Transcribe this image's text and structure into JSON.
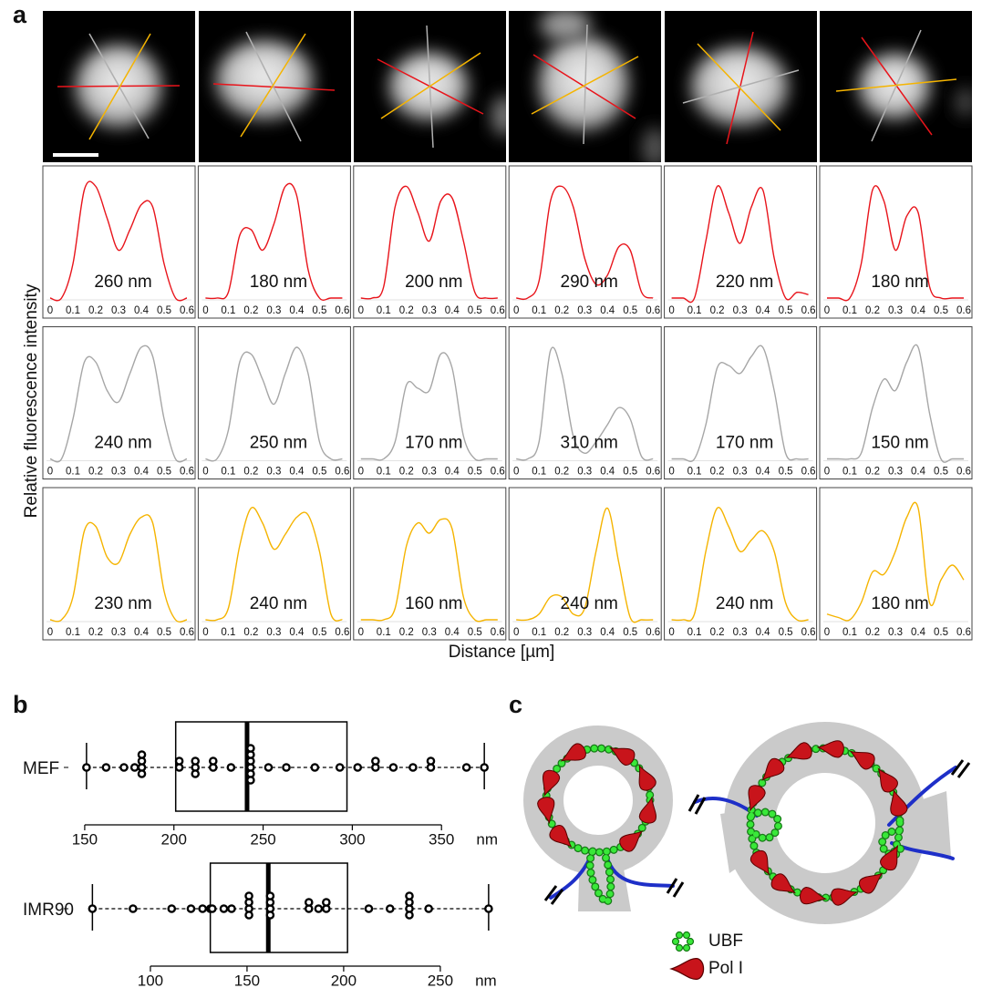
{
  "panel_a": {
    "label": "a",
    "y_label": "Relative fluorescence intensity",
    "x_label": "Distance [µm]"
  },
  "panel_b": {
    "label": "b"
  },
  "panel_c": {
    "label": "c",
    "legend": [
      "UBF",
      "Pol I"
    ]
  },
  "chart_data": [
    {
      "type": "line",
      "annotation": "260 nm",
      "x": [
        0,
        0.05,
        0.1,
        0.15,
        0.2,
        0.25,
        0.3,
        0.35,
        0.4,
        0.45,
        0.5,
        0.55,
        0.6
      ],
      "xlim": [
        0,
        0.6
      ],
      "xticks": [
        0,
        0.1,
        0.2,
        0.3,
        0.4,
        0.5,
        0.6
      ],
      "ylim": [
        0,
        1
      ],
      "series": [
        {
          "color": "#e8141b",
          "values": [
            0,
            0,
            0.3,
            0.95,
            0.98,
            0.7,
            0.42,
            0.6,
            0.82,
            0.8,
            0.3,
            0,
            0
          ]
        }
      ]
    },
    {
      "type": "line",
      "annotation": "180 nm",
      "x": [
        0,
        0.05,
        0.1,
        0.15,
        0.2,
        0.25,
        0.3,
        0.35,
        0.4,
        0.45,
        0.5,
        0.55,
        0.6
      ],
      "xlim": [
        0,
        0.6
      ],
      "xticks": [
        0,
        0.1,
        0.2,
        0.3,
        0.4,
        0.5,
        0.6
      ],
      "ylim": [
        0,
        1
      ],
      "series": [
        {
          "color": "#e8141b",
          "values": [
            0,
            0,
            0.05,
            0.55,
            0.6,
            0.42,
            0.65,
            0.98,
            0.9,
            0.25,
            0,
            0,
            0
          ]
        }
      ]
    },
    {
      "type": "line",
      "annotation": "200 nm",
      "x": [
        0,
        0.05,
        0.1,
        0.15,
        0.2,
        0.25,
        0.3,
        0.35,
        0.4,
        0.45,
        0.5,
        0.55,
        0.6
      ],
      "xlim": [
        0,
        0.6
      ],
      "xticks": [
        0,
        0.1,
        0.2,
        0.3,
        0.4,
        0.5,
        0.6
      ],
      "ylim": [
        0,
        1
      ],
      "series": [
        {
          "color": "#e8141b",
          "values": [
            0,
            0,
            0.1,
            0.8,
            0.98,
            0.75,
            0.5,
            0.85,
            0.88,
            0.5,
            0.05,
            0,
            0
          ]
        }
      ]
    },
    {
      "type": "line",
      "annotation": "290 nm",
      "x": [
        0,
        0.05,
        0.1,
        0.15,
        0.2,
        0.25,
        0.3,
        0.35,
        0.4,
        0.45,
        0.5,
        0.55,
        0.6
      ],
      "xlim": [
        0,
        0.6
      ],
      "xticks": [
        0,
        0.1,
        0.2,
        0.3,
        0.4,
        0.5,
        0.6
      ],
      "ylim": [
        0,
        1
      ],
      "series": [
        {
          "color": "#e8141b",
          "values": [
            0,
            0,
            0.15,
            0.85,
            0.98,
            0.8,
            0.35,
            0.12,
            0.2,
            0.45,
            0.42,
            0.05,
            0
          ]
        }
      ]
    },
    {
      "type": "line",
      "annotation": "220 nm",
      "x": [
        0,
        0.05,
        0.1,
        0.15,
        0.2,
        0.25,
        0.3,
        0.35,
        0.4,
        0.45,
        0.5,
        0.55,
        0.6
      ],
      "xlim": [
        0,
        0.6
      ],
      "xticks": [
        0,
        0.1,
        0.2,
        0.3,
        0.4,
        0.5,
        0.6
      ],
      "ylim": [
        0,
        1
      ],
      "series": [
        {
          "color": "#e8141b",
          "values": [
            0,
            0,
            0,
            0.5,
            0.98,
            0.75,
            0.48,
            0.8,
            0.95,
            0.35,
            0,
            0.05,
            0.03
          ]
        }
      ]
    },
    {
      "type": "line",
      "annotation": "180 nm",
      "x": [
        0,
        0.05,
        0.1,
        0.15,
        0.2,
        0.25,
        0.3,
        0.35,
        0.4,
        0.45,
        0.5,
        0.55,
        0.6
      ],
      "xlim": [
        0,
        0.6
      ],
      "xticks": [
        0,
        0.1,
        0.2,
        0.3,
        0.4,
        0.5,
        0.6
      ],
      "ylim": [
        0,
        1
      ],
      "series": [
        {
          "color": "#e8141b",
          "values": [
            0,
            0,
            0,
            0.3,
            0.95,
            0.85,
            0.42,
            0.72,
            0.75,
            0.1,
            0,
            0,
            0
          ]
        }
      ]
    },
    {
      "type": "line",
      "annotation": "240 nm",
      "x": [
        0,
        0.05,
        0.1,
        0.15,
        0.2,
        0.25,
        0.3,
        0.35,
        0.4,
        0.45,
        0.5,
        0.55,
        0.6
      ],
      "xlim": [
        0,
        0.6
      ],
      "xticks": [
        0,
        0.1,
        0.2,
        0.3,
        0.4,
        0.5,
        0.6
      ],
      "ylim": [
        0,
        1
      ],
      "series": [
        {
          "color": "#a6a6a6",
          "values": [
            0,
            0,
            0.35,
            0.85,
            0.85,
            0.6,
            0.5,
            0.75,
            0.98,
            0.9,
            0.35,
            0,
            0
          ]
        }
      ]
    },
    {
      "type": "line",
      "annotation": "250 nm",
      "x": [
        0,
        0.05,
        0.1,
        0.15,
        0.2,
        0.25,
        0.3,
        0.35,
        0.4,
        0.45,
        0.5,
        0.55,
        0.6
      ],
      "xlim": [
        0,
        0.6
      ],
      "xticks": [
        0,
        0.1,
        0.2,
        0.3,
        0.4,
        0.5,
        0.6
      ],
      "ylim": [
        0,
        1
      ],
      "series": [
        {
          "color": "#a6a6a6",
          "values": [
            0,
            0,
            0.25,
            0.85,
            0.92,
            0.7,
            0.48,
            0.75,
            0.98,
            0.75,
            0.15,
            0,
            0
          ]
        }
      ]
    },
    {
      "type": "line",
      "annotation": "170 nm",
      "x": [
        0,
        0.05,
        0.1,
        0.15,
        0.2,
        0.25,
        0.3,
        0.35,
        0.4,
        0.45,
        0.5,
        0.55,
        0.6
      ],
      "xlim": [
        0,
        0.6
      ],
      "xticks": [
        0,
        0.1,
        0.2,
        0.3,
        0.4,
        0.5,
        0.6
      ],
      "ylim": [
        0,
        1
      ],
      "series": [
        {
          "color": "#a6a6a6",
          "values": [
            0,
            0,
            0,
            0.15,
            0.65,
            0.62,
            0.6,
            0.92,
            0.8,
            0.2,
            0,
            0,
            0
          ]
        }
      ]
    },
    {
      "type": "line",
      "annotation": "310 nm",
      "x": [
        0,
        0.05,
        0.1,
        0.15,
        0.2,
        0.25,
        0.3,
        0.35,
        0.4,
        0.45,
        0.5,
        0.55,
        0.6
      ],
      "xlim": [
        0,
        0.6
      ],
      "xticks": [
        0,
        0.1,
        0.2,
        0.3,
        0.4,
        0.5,
        0.6
      ],
      "ylim": [
        0,
        1
      ],
      "series": [
        {
          "color": "#a6a6a6",
          "values": [
            0,
            0,
            0.15,
            0.95,
            0.75,
            0.2,
            0.05,
            0.15,
            0.3,
            0.45,
            0.35,
            0.02,
            0
          ]
        }
      ]
    },
    {
      "type": "line",
      "annotation": "170 nm",
      "x": [
        0,
        0.05,
        0.1,
        0.15,
        0.2,
        0.25,
        0.3,
        0.35,
        0.4,
        0.45,
        0.5,
        0.55,
        0.6
      ],
      "xlim": [
        0,
        0.6
      ],
      "xticks": [
        0,
        0.1,
        0.2,
        0.3,
        0.4,
        0.5,
        0.6
      ],
      "ylim": [
        0,
        1
      ],
      "series": [
        {
          "color": "#a6a6a6",
          "values": [
            0,
            0,
            0,
            0.3,
            0.8,
            0.82,
            0.75,
            0.9,
            0.98,
            0.6,
            0.05,
            0,
            0
          ]
        }
      ]
    },
    {
      "type": "line",
      "annotation": "150 nm",
      "x": [
        0,
        0.05,
        0.1,
        0.15,
        0.2,
        0.25,
        0.3,
        0.35,
        0.4,
        0.45,
        0.5,
        0.55,
        0.6
      ],
      "xlim": [
        0,
        0.6
      ],
      "xticks": [
        0,
        0.1,
        0.2,
        0.3,
        0.4,
        0.5,
        0.6
      ],
      "ylim": [
        0,
        1
      ],
      "series": [
        {
          "color": "#a6a6a6",
          "values": [
            0,
            0,
            0,
            0.05,
            0.45,
            0.7,
            0.6,
            0.85,
            0.98,
            0.4,
            0,
            0,
            0
          ]
        }
      ]
    },
    {
      "type": "line",
      "annotation": "230 nm",
      "x": [
        0,
        0.05,
        0.1,
        0.15,
        0.2,
        0.25,
        0.3,
        0.35,
        0.4,
        0.45,
        0.5,
        0.55,
        0.6
      ],
      "xlim": [
        0,
        0.6
      ],
      "xticks": [
        0,
        0.1,
        0.2,
        0.3,
        0.4,
        0.5,
        0.6
      ],
      "ylim": [
        0,
        1
      ],
      "series": [
        {
          "color": "#f5b400",
          "values": [
            0,
            0,
            0.2,
            0.78,
            0.82,
            0.55,
            0.5,
            0.75,
            0.9,
            0.85,
            0.25,
            0,
            0
          ]
        }
      ]
    },
    {
      "type": "line",
      "annotation": "240 nm",
      "x": [
        0,
        0.05,
        0.1,
        0.15,
        0.2,
        0.25,
        0.3,
        0.35,
        0.4,
        0.45,
        0.5,
        0.55,
        0.6
      ],
      "xlim": [
        0,
        0.6
      ],
      "xticks": [
        0,
        0.1,
        0.2,
        0.3,
        0.4,
        0.5,
        0.6
      ],
      "ylim": [
        0,
        1
      ],
      "series": [
        {
          "color": "#f5b400",
          "values": [
            0,
            0,
            0.1,
            0.65,
            0.98,
            0.85,
            0.62,
            0.75,
            0.9,
            0.92,
            0.6,
            0.05,
            0
          ]
        }
      ]
    },
    {
      "type": "line",
      "annotation": "160 nm",
      "x": [
        0,
        0.05,
        0.1,
        0.15,
        0.2,
        0.25,
        0.3,
        0.35,
        0.4,
        0.45,
        0.5,
        0.55,
        0.6
      ],
      "xlim": [
        0,
        0.6
      ],
      "xticks": [
        0,
        0.1,
        0.2,
        0.3,
        0.4,
        0.5,
        0.6
      ],
      "ylim": [
        0,
        1
      ],
      "series": [
        {
          "color": "#f5b400",
          "values": [
            0,
            0,
            0,
            0.1,
            0.65,
            0.85,
            0.76,
            0.88,
            0.8,
            0.2,
            0,
            0,
            0
          ]
        }
      ]
    },
    {
      "type": "line",
      "annotation": "240 nm",
      "x": [
        0,
        0.05,
        0.1,
        0.15,
        0.2,
        0.25,
        0.3,
        0.35,
        0.4,
        0.45,
        0.5,
        0.55,
        0.6
      ],
      "xlim": [
        0,
        0.6
      ],
      "xticks": [
        0,
        0.1,
        0.2,
        0.3,
        0.4,
        0.5,
        0.6
      ],
      "ylim": [
        0,
        1
      ],
      "series": [
        {
          "color": "#f5b400",
          "values": [
            0,
            0,
            0.05,
            0.2,
            0.2,
            0.05,
            0.1,
            0.6,
            0.98,
            0.5,
            0.02,
            0,
            0
          ]
        }
      ]
    },
    {
      "type": "line",
      "annotation": "240 nm",
      "x": [
        0,
        0.05,
        0.1,
        0.15,
        0.2,
        0.25,
        0.3,
        0.35,
        0.4,
        0.45,
        0.5,
        0.55,
        0.6
      ],
      "xlim": [
        0,
        0.6
      ],
      "xticks": [
        0,
        0.1,
        0.2,
        0.3,
        0.4,
        0.5,
        0.6
      ],
      "ylim": [
        0,
        1
      ],
      "series": [
        {
          "color": "#f5b400",
          "values": [
            0,
            0,
            0.05,
            0.6,
            0.98,
            0.82,
            0.6,
            0.7,
            0.78,
            0.6,
            0.15,
            0,
            0
          ]
        }
      ]
    },
    {
      "type": "line",
      "annotation": "180 nm",
      "x": [
        0,
        0.05,
        0.1,
        0.15,
        0.2,
        0.25,
        0.3,
        0.35,
        0.4,
        0.45,
        0.5,
        0.55,
        0.6
      ],
      "xlim": [
        0,
        0.6
      ],
      "xticks": [
        0,
        0.1,
        0.2,
        0.3,
        0.4,
        0.5,
        0.6
      ],
      "ylim": [
        0,
        1
      ],
      "series": [
        {
          "color": "#f5b400",
          "values": [
            0.05,
            0.02,
            0,
            0.15,
            0.42,
            0.4,
            0.6,
            0.9,
            0.98,
            0.15,
            0.35,
            0.48,
            0.35
          ]
        }
      ]
    },
    {
      "type": "box",
      "category": "MEF",
      "x_label": "nm",
      "xlim": [
        148,
        378
      ],
      "xticks": [
        150,
        200,
        250,
        300,
        350
      ],
      "min": 151,
      "q1": 201,
      "median": 241,
      "q3": 297,
      "max": 374,
      "values": [
        151,
        162,
        172,
        178,
        182,
        182,
        182,
        182,
        203,
        203,
        212,
        212,
        212,
        222,
        222,
        232,
        243,
        243,
        243,
        243,
        243,
        243,
        253,
        263,
        279,
        293,
        303,
        313,
        313,
        323,
        334,
        344,
        344,
        364,
        374
      ]
    },
    {
      "type": "box",
      "category": "IMR90",
      "x_label": "nm",
      "xlim": [
        67,
        276
      ],
      "xticks": [
        100,
        150,
        200,
        250
      ],
      "min": 70,
      "q1": 131,
      "median": 161,
      "q3": 202,
      "max": 275,
      "values": [
        70,
        91,
        111,
        121,
        127,
        131,
        132,
        138,
        142,
        151,
        151,
        151,
        151,
        162,
        162,
        162,
        162,
        182,
        182,
        187,
        191,
        191,
        213,
        224,
        234,
        234,
        234,
        234,
        244,
        275
      ]
    }
  ]
}
